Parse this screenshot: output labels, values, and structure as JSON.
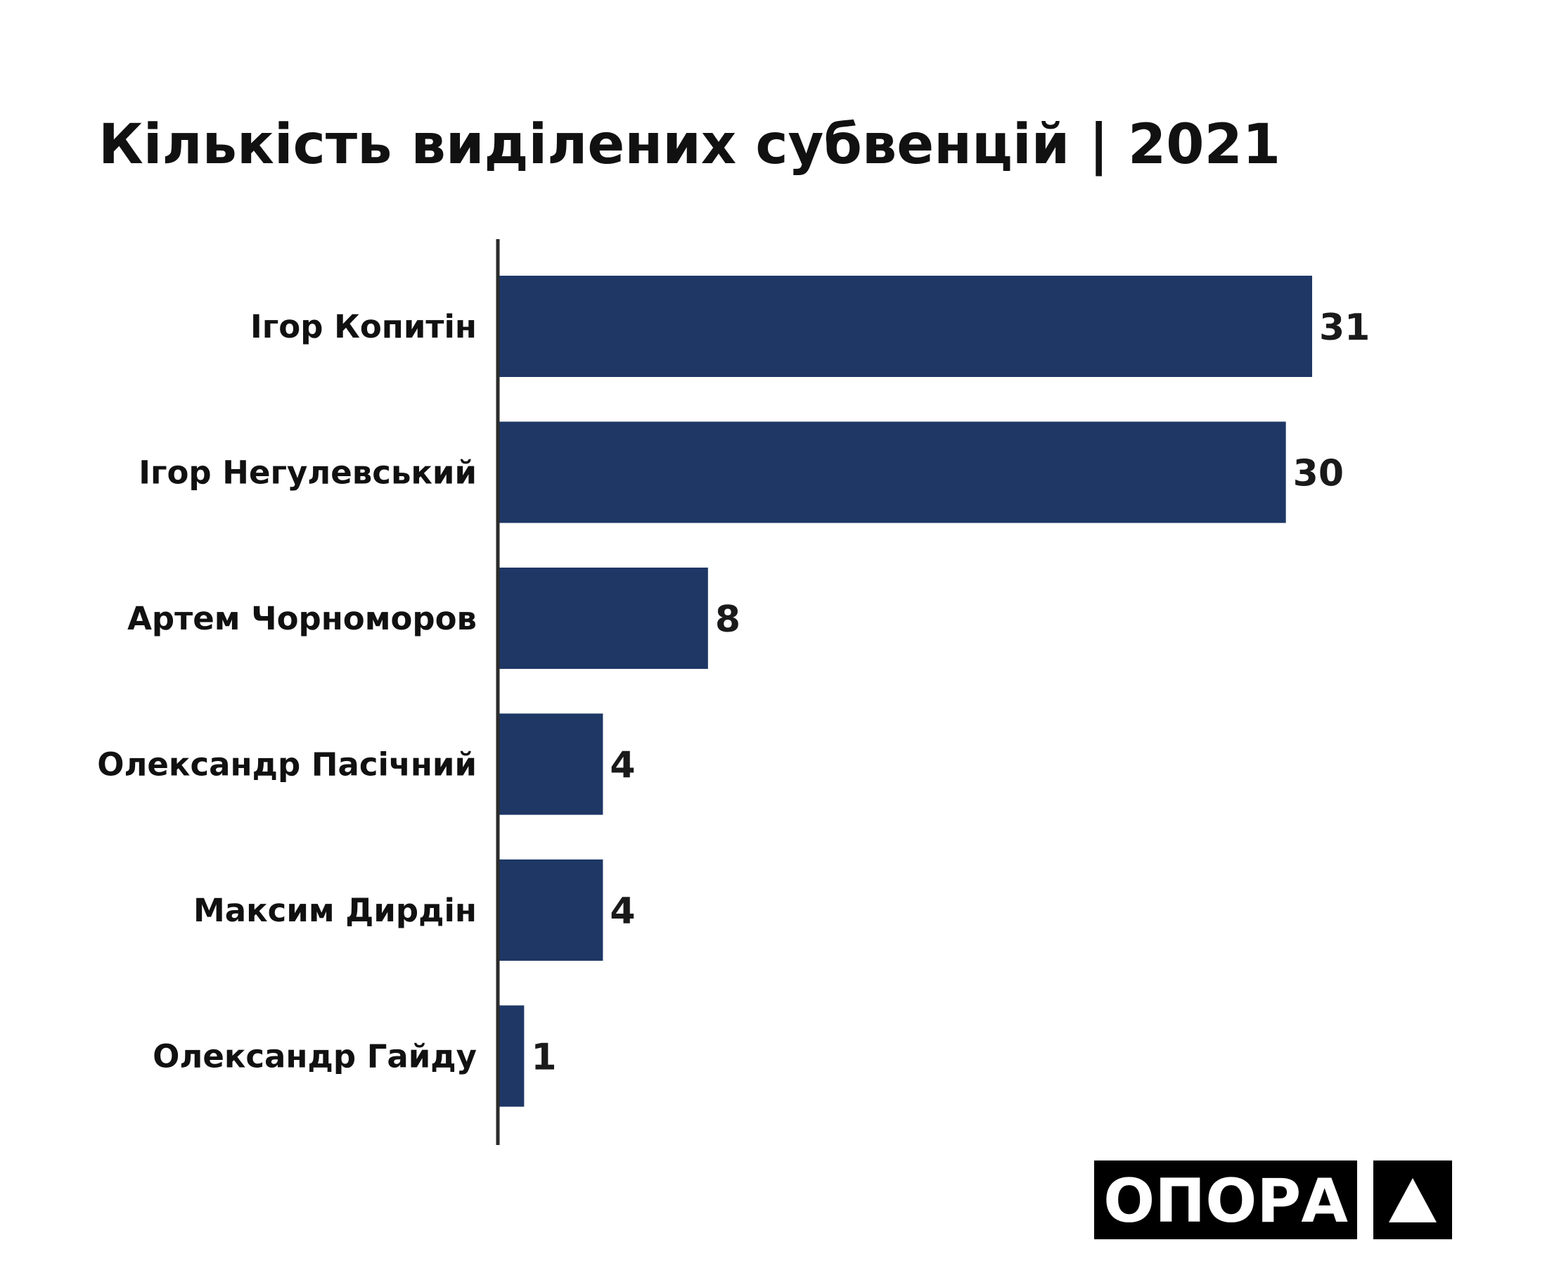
{
  "chart_data": {
    "type": "bar",
    "orientation": "horizontal",
    "title": "Кількість виділених субвенцій | 2021",
    "categories": [
      "Ігор Копитін",
      "Ігор Негулевський",
      "Артем Чорноморов",
      "Олександр Пасічний",
      "Максим Дирдін",
      "Олександр Гайду"
    ],
    "values": [
      31,
      30,
      8,
      4,
      4,
      1
    ],
    "xlim": [
      0,
      31
    ],
    "bar_color": "#1e3765",
    "axis_color": "#2b2b2b",
    "grid": false,
    "data_labels": true
  },
  "logo": {
    "text": "ОПОРА",
    "icon": "triangle-icon",
    "background": "#000000",
    "foreground": "#ffffff"
  }
}
